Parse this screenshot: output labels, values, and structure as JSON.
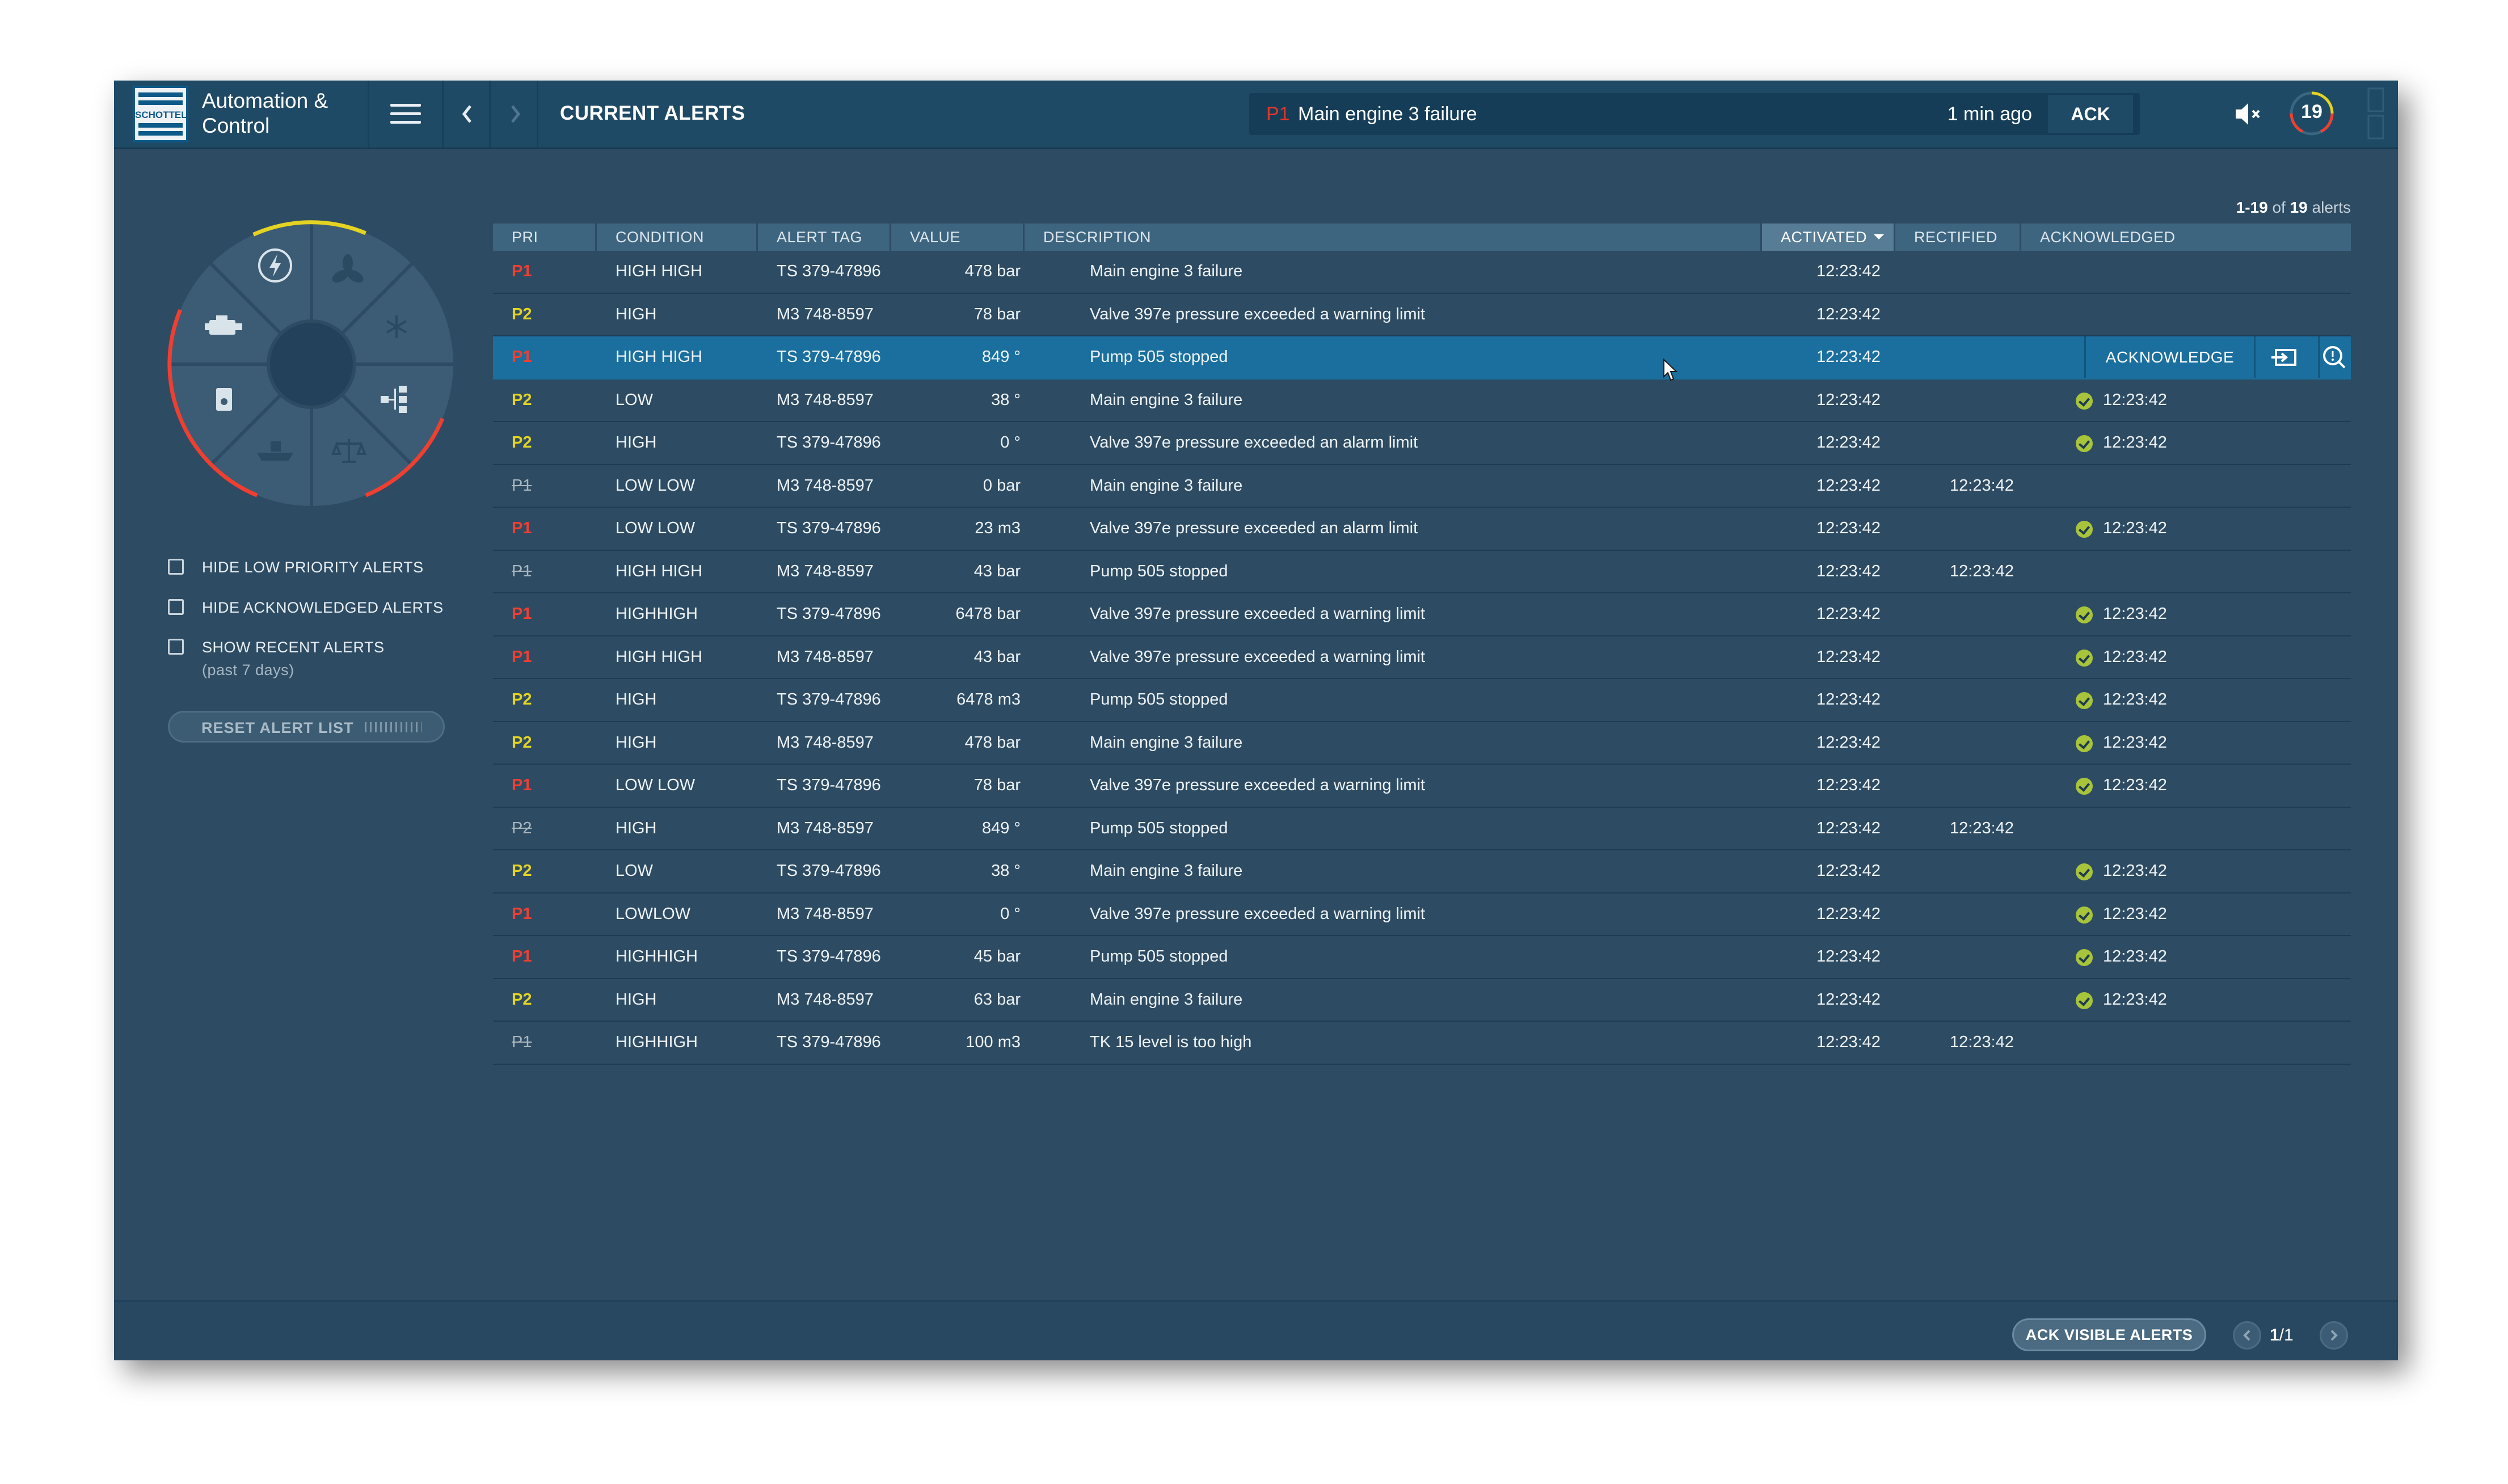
{
  "topbar": {
    "brand": "SCHOTTEL",
    "app_title": "Automation & Control",
    "page_title": "CURRENT ALERTS",
    "banner": {
      "priority": "P1",
      "message": "Main engine 3 failure",
      "time_ago": "1 min ago",
      "ack_label": "ACK"
    },
    "alert_count": "19"
  },
  "filters": {
    "hide_low": "HIDE LOW PRIORITY ALERTS",
    "hide_ack": "HIDE ACKNOWLEDGED ALERTS",
    "show_recent": "SHOW RECENT ALERTS",
    "show_recent_sub": "(past 7 days)",
    "reset": "RESET ALERT LIST"
  },
  "table": {
    "range": "1-19",
    "of": "of",
    "total": "19",
    "unit": "alerts",
    "columns": [
      "PRI",
      "CONDITION",
      "ALERT TAG",
      "VALUE",
      "DESCRIPTION",
      "ACTIVATED",
      "RECTIFIED",
      "ACKNOWLEDGED"
    ],
    "sorted_column": "ACTIVATED",
    "selected_action": "ACKNOWLEDGE",
    "rows": [
      {
        "pri": "P1",
        "struck": false,
        "condition": "HIGH HIGH",
        "tag": "TS 379-47896",
        "value": "478 bar",
        "description": "Main engine 3 failure",
        "activated": "12:23:42",
        "rectified": "",
        "acknowledged": ""
      },
      {
        "pri": "P2",
        "struck": false,
        "condition": "HIGH",
        "tag": "M3 748-8597",
        "value": "78 bar",
        "description": "Valve 397e pressure exceeded a warning limit",
        "activated": "12:23:42",
        "rectified": "",
        "acknowledged": ""
      },
      {
        "pri": "P1",
        "struck": false,
        "selected": true,
        "condition": "HIGH HIGH",
        "tag": "TS 379-47896",
        "value": "849 °",
        "description": "Pump 505 stopped",
        "activated": "12:23:42",
        "rectified": "",
        "acknowledged": ""
      },
      {
        "pri": "P2",
        "struck": false,
        "condition": "LOW",
        "tag": "M3 748-8597",
        "value": "38 °",
        "description": "Main engine 3 failure",
        "activated": "12:23:42",
        "rectified": "",
        "acknowledged": "12:23:42"
      },
      {
        "pri": "P2",
        "struck": false,
        "condition": "HIGH",
        "tag": "TS 379-47896",
        "value": "0 °",
        "description": "Valve 397e pressure exceeded an alarm limit",
        "activated": "12:23:42",
        "rectified": "",
        "acknowledged": "12:23:42"
      },
      {
        "pri": "P1",
        "struck": true,
        "condition": "LOW LOW",
        "tag": "M3 748-8597",
        "value": "0 bar",
        "description": "Main engine 3 failure",
        "activated": "12:23:42",
        "rectified": "12:23:42",
        "acknowledged": ""
      },
      {
        "pri": "P1",
        "struck": false,
        "condition": "LOW LOW",
        "tag": "TS 379-47896",
        "value": "23 m3",
        "description": "Valve 397e pressure exceeded an alarm limit",
        "activated": "12:23:42",
        "rectified": "",
        "acknowledged": "12:23:42"
      },
      {
        "pri": "P1",
        "struck": true,
        "condition": "HIGH HIGH",
        "tag": "M3 748-8597",
        "value": "43 bar",
        "description": "Pump 505 stopped",
        "activated": "12:23:42",
        "rectified": "12:23:42",
        "acknowledged": ""
      },
      {
        "pri": "P1",
        "struck": false,
        "condition": "HIGHHIGH",
        "tag": "TS 379-47896",
        "value": "6478 bar",
        "description": "Valve 397e pressure exceeded a warning limit",
        "activated": "12:23:42",
        "rectified": "",
        "acknowledged": "12:23:42"
      },
      {
        "pri": "P1",
        "struck": false,
        "condition": "HIGH HIGH",
        "tag": "M3 748-8597",
        "value": "43 bar",
        "description": "Valve 397e pressure exceeded a warning limit",
        "activated": "12:23:42",
        "rectified": "",
        "acknowledged": "12:23:42"
      },
      {
        "pri": "P2",
        "struck": false,
        "condition": "HIGH",
        "tag": "TS 379-47896",
        "value": "6478 m3",
        "description": "Pump 505 stopped",
        "activated": "12:23:42",
        "rectified": "",
        "acknowledged": "12:23:42"
      },
      {
        "pri": "P2",
        "struck": false,
        "condition": "HIGH",
        "tag": "M3 748-8597",
        "value": "478 bar",
        "description": "Main engine 3 failure",
        "activated": "12:23:42",
        "rectified": "",
        "acknowledged": "12:23:42"
      },
      {
        "pri": "P1",
        "struck": false,
        "condition": "LOW LOW",
        "tag": "TS 379-47896",
        "value": "78 bar",
        "description": "Valve 397e pressure exceeded a warning limit",
        "activated": "12:23:42",
        "rectified": "",
        "acknowledged": "12:23:42"
      },
      {
        "pri": "P2",
        "struck": true,
        "condition": "HIGH",
        "tag": "M3 748-8597",
        "value": "849 °",
        "description": "Pump 505 stopped",
        "activated": "12:23:42",
        "rectified": "12:23:42",
        "acknowledged": ""
      },
      {
        "pri": "P2",
        "struck": false,
        "condition": "LOW",
        "tag": "TS 379-47896",
        "value": "38 °",
        "description": "Main engine 3 failure",
        "activated": "12:23:42",
        "rectified": "",
        "acknowledged": "12:23:42"
      },
      {
        "pri": "P1",
        "struck": false,
        "condition": "LOWLOW",
        "tag": "M3 748-8597",
        "value": "0 °",
        "description": "Valve 397e pressure exceeded a warning limit",
        "activated": "12:23:42",
        "rectified": "",
        "acknowledged": "12:23:42"
      },
      {
        "pri": "P1",
        "struck": false,
        "condition": "HIGHHIGH",
        "tag": "TS 379-47896",
        "value": "45 bar",
        "description": "Pump 505 stopped",
        "activated": "12:23:42",
        "rectified": "",
        "acknowledged": "12:23:42"
      },
      {
        "pri": "P2",
        "struck": false,
        "condition": "HIGH",
        "tag": "M3 748-8597",
        "value": "63 bar",
        "description": "Main engine 3 failure",
        "activated": "12:23:42",
        "rectified": "",
        "acknowledged": "12:23:42"
      },
      {
        "pri": "P1",
        "struck": true,
        "condition": "HIGHHIGH",
        "tag": "TS 379-47896",
        "value": "100 m3",
        "description": "TK 15 level is too high",
        "activated": "12:23:42",
        "rectified": "12:23:42",
        "acknowledged": ""
      }
    ]
  },
  "footer": {
    "ack_visible": "ACK VISIBLE ALERTS",
    "page_current": "1",
    "page_total": "/1"
  },
  "wheel": {
    "segments": [
      "power-icon",
      "fan-icon",
      "snowflake-icon",
      "network-icon",
      "balance-icon",
      "ship-icon",
      "fuel-icon",
      "engine-icon"
    ]
  },
  "colors": {
    "p1": "#ef3f31",
    "p2": "#e4d322",
    "acknowledged": "#a8c43a",
    "selected_row": "#1a6f9e"
  }
}
